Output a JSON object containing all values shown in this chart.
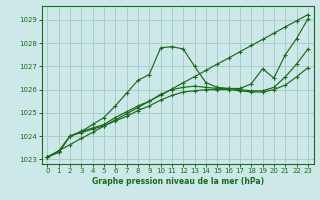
{
  "title": "Graphe pression niveau de la mer (hPa)",
  "background_color": "#cce8e8",
  "grid_color": "#aacccc",
  "line_color": "#1a6b1a",
  "xlim": [
    -0.5,
    23.5
  ],
  "ylim": [
    1022.8,
    1029.6
  ],
  "yticks": [
    1023,
    1024,
    1025,
    1026,
    1027,
    1028,
    1029
  ],
  "xticks": [
    0,
    1,
    2,
    3,
    4,
    5,
    6,
    7,
    8,
    9,
    10,
    11,
    12,
    13,
    14,
    15,
    16,
    17,
    18,
    19,
    20,
    21,
    22,
    23
  ],
  "series": [
    {
      "x": [
        0,
        1,
        2,
        3,
        4,
        5,
        6,
        7,
        8,
        9,
        10,
        11,
        12,
        13,
        14,
        15,
        16,
        17,
        18,
        19,
        20,
        21,
        22,
        23
      ],
      "y": [
        1023.1,
        1023.3,
        1024.0,
        1024.2,
        1024.5,
        1024.8,
        1025.3,
        1025.85,
        1026.4,
        1026.65,
        1027.8,
        1027.85,
        1027.75,
        1027.0,
        1026.3,
        1026.1,
        1026.05,
        1026.05,
        1026.25,
        1026.9,
        1026.5,
        1027.5,
        1028.2,
        1029.05
      ]
    },
    {
      "x": [
        0,
        1,
        2,
        3,
        4,
        5,
        6,
        7,
        8,
        9,
        10,
        11,
        12,
        13,
        14,
        15,
        16,
        17,
        18,
        19,
        20,
        21,
        22,
        23
      ],
      "y": [
        1023.1,
        1023.37,
        1023.63,
        1023.9,
        1024.16,
        1024.43,
        1024.7,
        1024.96,
        1025.23,
        1025.5,
        1025.76,
        1026.03,
        1026.3,
        1026.56,
        1026.83,
        1027.1,
        1027.36,
        1027.63,
        1027.9,
        1028.16,
        1028.43,
        1028.7,
        1028.96,
        1029.23
      ]
    },
    {
      "x": [
        0,
        1,
        2,
        3,
        4,
        5,
        6,
        7,
        8,
        9,
        10,
        11,
        12,
        13,
        14,
        15,
        16,
        17,
        18,
        19,
        20,
        21,
        22,
        23
      ],
      "y": [
        1023.1,
        1023.3,
        1024.0,
        1024.15,
        1024.3,
        1024.45,
        1024.65,
        1024.85,
        1025.1,
        1025.3,
        1025.55,
        1025.75,
        1025.9,
        1025.95,
        1026.0,
        1026.0,
        1026.0,
        1025.95,
        1025.9,
        1025.9,
        1026.0,
        1026.2,
        1026.55,
        1026.95
      ]
    },
    {
      "x": [
        0,
        1,
        2,
        3,
        4,
        5,
        6,
        7,
        8,
        9,
        10,
        11,
        12,
        13,
        14,
        15,
        16,
        17,
        18,
        19,
        20,
        21,
        22,
        23
      ],
      "y": [
        1023.1,
        1023.35,
        1024.0,
        1024.2,
        1024.35,
        1024.5,
        1024.8,
        1025.05,
        1025.3,
        1025.5,
        1025.8,
        1026.0,
        1026.1,
        1026.15,
        1026.1,
        1026.05,
        1026.05,
        1026.0,
        1025.95,
        1025.95,
        1026.1,
        1026.55,
        1027.1,
        1027.75
      ]
    }
  ]
}
